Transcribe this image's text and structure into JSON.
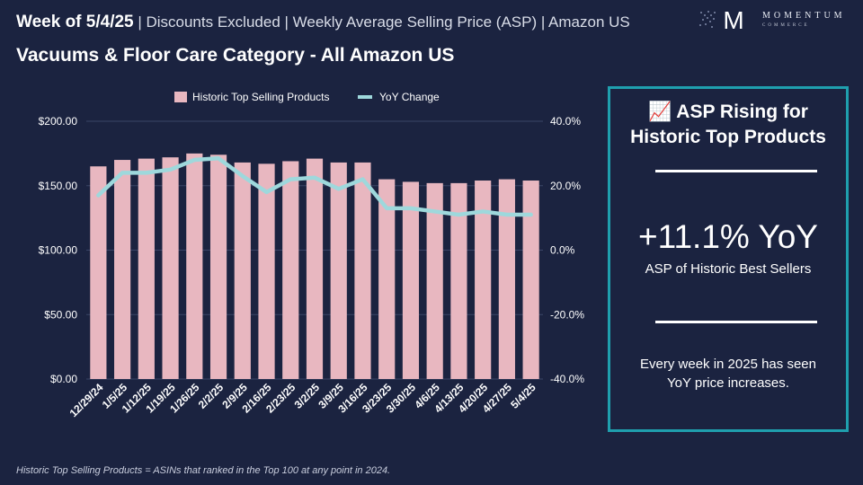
{
  "header": {
    "week_label": "Week of 5/4/25",
    "context": " | Discounts Excluded | Weekly Average Selling Price (ASP) | Amazon US",
    "subtitle": "Vacuums & Floor Care Category - All Amazon US"
  },
  "logo": {
    "brand": "MOMENTUM",
    "sub": "COMMERCE",
    "mark": "M"
  },
  "colors": {
    "background": "#1b2340",
    "bar": "#e8b7c0",
    "line": "#9ed8dc",
    "panel_border": "#1f9fae"
  },
  "chart_data": {
    "type": "bar",
    "categories": [
      "12/29/24",
      "1/5/25",
      "1/12/25",
      "1/19/25",
      "1/26/25",
      "2/2/25",
      "2/9/25",
      "2/16/25",
      "2/23/25",
      "3/2/25",
      "3/9/25",
      "3/16/25",
      "3/23/25",
      "3/30/25",
      "4/6/25",
      "4/13/25",
      "4/20/25",
      "4/27/25",
      "5/4/25"
    ],
    "series": [
      {
        "name": "Historic Top Selling Products",
        "type": "bar",
        "axis": "left",
        "values": [
          165,
          170,
          171,
          172,
          175,
          174,
          168,
          167,
          169,
          171,
          168,
          168,
          155,
          153,
          152,
          152,
          154,
          155,
          154
        ]
      },
      {
        "name": "YoY Change",
        "type": "line",
        "axis": "right",
        "values": [
          17,
          24,
          24,
          25,
          28,
          28.5,
          23,
          18,
          22,
          22.5,
          19,
          22,
          13,
          13,
          12,
          11,
          12,
          11,
          11
        ]
      }
    ],
    "ylim_left": [
      0,
      200
    ],
    "ylim_right": [
      -40,
      40
    ],
    "yticks_left": [
      "$0.00",
      "$50.00",
      "$100.00",
      "$150.00",
      "$200.00"
    ],
    "yticks_right": [
      "-40.0%",
      "-20.0%",
      "0.0%",
      "20.0%",
      "40.0%"
    ],
    "legend_position": "top-center"
  },
  "panel": {
    "icon": "📈",
    "headline_line1": "ASP Rising for",
    "headline_line2": "Historic Top Products",
    "stat": "+11.1% YoY",
    "stat_caption": "ASP of Historic Best Sellers",
    "note_line1": "Every week in 2025 has seen",
    "note_line2": "YoY price increases."
  },
  "footnote": "Historic Top Selling Products = ASINs that ranked in the Top 100 at any point in 2024."
}
